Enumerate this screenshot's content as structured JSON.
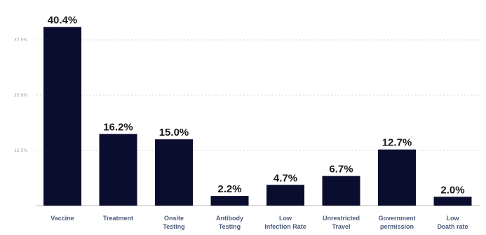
{
  "chart_data": {
    "type": "bar",
    "categories": [
      [
        "Vaccine"
      ],
      [
        "Treatment"
      ],
      [
        "Onsite",
        "Testing"
      ],
      [
        "Antibody",
        "Testing"
      ],
      [
        "Low",
        "Infection Rate"
      ],
      [
        "Unrestricted",
        "Travel"
      ],
      [
        "Government",
        "permission"
      ],
      [
        "Low",
        "Death rate"
      ]
    ],
    "values": [
      40.4,
      16.2,
      15.0,
      2.2,
      4.7,
      6.7,
      12.7,
      2.0
    ],
    "value_labels": [
      "40.4%",
      "16.2%",
      "15.0%",
      "2.2%",
      "4.7%",
      "6.7%",
      "12.7%",
      "2.0%"
    ],
    "yticks": [
      12.5,
      25.0,
      37.5
    ],
    "ytick_labels": [
      "12.5%",
      "25.0%",
      "37.5%"
    ],
    "ylim": [
      0,
      45
    ],
    "grid": true,
    "colors": {
      "bar": "#0b0d2e",
      "grid": "#d6d6d6",
      "baseline": "#bdbdbd"
    }
  }
}
